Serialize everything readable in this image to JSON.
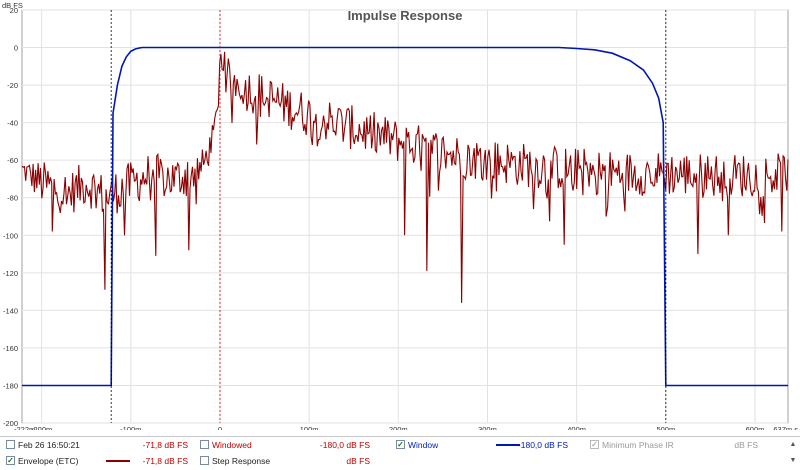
{
  "chart_data": {
    "type": "line",
    "title": "Impulse Response",
    "ylabel": "dB FS",
    "xunit": "s",
    "xlim": [
      -0.222,
      0.637
    ],
    "ylim": [
      -200,
      20
    ],
    "yticks": [
      20,
      0,
      -20,
      -40,
      -60,
      -80,
      -100,
      -120,
      -140,
      -160,
      -180,
      -200
    ],
    "xtick_labels": [
      "-222m",
      "-200m",
      "-100m",
      "0",
      "100m",
      "200m",
      "300m",
      "400m",
      "500m",
      "600m",
      "637m s"
    ],
    "markers": [
      {
        "x": -0.122,
        "color": "#000000"
      },
      {
        "x": 0.0,
        "color": "#e00000"
      },
      {
        "x": 0.5,
        "color": "#000000"
      }
    ],
    "series": [
      {
        "name": "Window",
        "color": "#0018b0",
        "x": [
          -0.222,
          -0.122,
          -0.12,
          -0.115,
          -0.11,
          -0.105,
          -0.1,
          -0.095,
          -0.09,
          -0.087,
          0.0,
          0.38,
          0.4,
          0.42,
          0.44,
          0.46,
          0.475,
          0.485,
          0.492,
          0.497,
          0.5,
          0.637
        ],
        "y": [
          -180,
          -180,
          -35,
          -20,
          -10,
          -5,
          -2,
          -0.8,
          -0.2,
          0,
          0,
          0,
          -0.5,
          -1.2,
          -3,
          -7,
          -12,
          -19,
          -27,
          -40,
          -180,
          -180
        ]
      },
      {
        "name": "Envelope (ETC)",
        "color": "#8b0000",
        "x": [
          -0.222,
          -0.2,
          -0.17,
          -0.15,
          -0.128,
          -0.11,
          -0.08,
          -0.05,
          -0.02,
          -0.01,
          -0.002,
          0.0,
          0.01,
          0.03,
          0.06,
          0.1,
          0.15,
          0.2,
          0.25,
          0.27,
          0.3,
          0.35,
          0.4,
          0.45,
          0.5,
          0.55,
          0.6,
          0.637
        ],
        "y": [
          -65,
          -72,
          -78,
          -72,
          -80,
          -75,
          -68,
          -70,
          -64,
          -52,
          -32,
          -2,
          -16,
          -22,
          -28,
          -36,
          -43,
          -50,
          -56,
          -58,
          -60,
          -63,
          -65,
          -67,
          -67,
          -68,
          -68,
          -68
        ],
        "noise": [
          6,
          12,
          12,
          12,
          12,
          12,
          12,
          12,
          10,
          8,
          5,
          4,
          10,
          12,
          12,
          12,
          12,
          12,
          12,
          12,
          12,
          12,
          12,
          12,
          12,
          12,
          12,
          12
        ],
        "dips": [
          {
            "x": -0.129,
            "y": -129
          },
          {
            "x": -0.188,
            "y": -98
          },
          {
            "x": -0.107,
            "y": -100
          },
          {
            "x": -0.072,
            "y": -111
          },
          {
            "x": -0.035,
            "y": -108
          },
          {
            "x": 0.271,
            "y": -136
          },
          {
            "x": 0.232,
            "y": -119
          },
          {
            "x": 0.207,
            "y": -100
          },
          {
            "x": 0.386,
            "y": -105
          },
          {
            "x": 0.433,
            "y": -90
          },
          {
            "x": 0.536,
            "y": -110
          },
          {
            "x": 0.57,
            "y": -100
          },
          {
            "x": 0.63,
            "y": -98
          }
        ]
      }
    ],
    "grid": true,
    "legend_position": "bottom"
  },
  "legend": {
    "rows": [
      [
        {
          "label": "Feb 26 16:50:21",
          "checked": false,
          "value": "-71,8 dB FS",
          "label_class": "",
          "value_class": "red",
          "swatch": ""
        },
        {
          "label": "Windowed",
          "checked": false,
          "value": "-180,0 dB FS",
          "label_class": "red",
          "value_class": "red",
          "swatch": ""
        },
        {
          "label": "Window",
          "checked": true,
          "value": "-180,0 dB FS",
          "label_class": "blue",
          "value_class": "blue",
          "swatch": "#0018b0"
        },
        {
          "label": "Minimum Phase IR",
          "checked": true,
          "value": "dB FS",
          "label_class": "grey",
          "value_class": "grey",
          "swatch": ""
        }
      ],
      [
        {
          "label": "Envelope (ETC)",
          "checked": true,
          "value": "-71,8 dB FS",
          "label_class": "",
          "value_class": "red",
          "swatch": "#8b0000"
        },
        {
          "label": "Step Response",
          "checked": false,
          "value": "dB FS",
          "label_class": "",
          "value_class": "red",
          "swatch": ""
        }
      ]
    ],
    "scroll_up": "▲",
    "scroll_down": "▼"
  }
}
